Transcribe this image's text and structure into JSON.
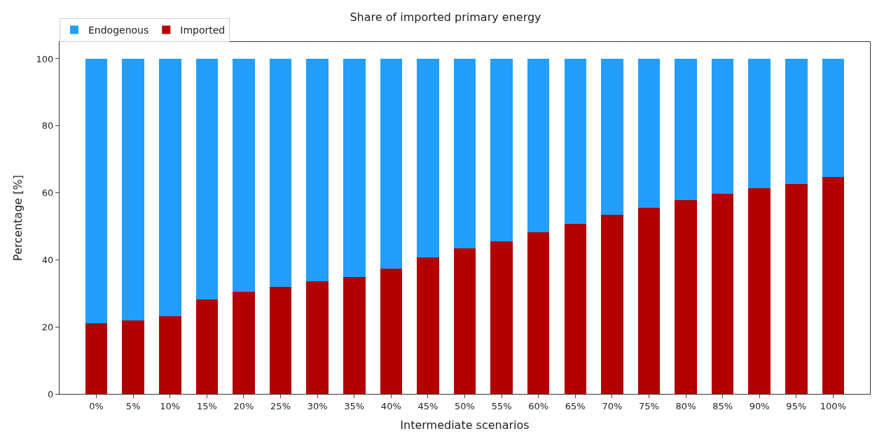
{
  "chart_data": {
    "type": "bar",
    "title": "Share of imported primary energy",
    "xlabel": "Intermediate scenarios",
    "ylabel": "Percentage [%]",
    "categories": [
      "0%",
      "5%",
      "10%",
      "15%",
      "20%",
      "25%",
      "30%",
      "35%",
      "40%",
      "45%",
      "50%",
      "55%",
      "60%",
      "65%",
      "70%",
      "75%",
      "80%",
      "85%",
      "90%",
      "95%",
      "100%"
    ],
    "stacked": true,
    "series": [
      {
        "name": "Imported",
        "color": "#b30000",
        "values": [
          21.1,
          21.9,
          23.1,
          28.1,
          30.5,
          31.9,
          33.7,
          34.9,
          37.3,
          40.8,
          43.4,
          45.6,
          48.2,
          50.8,
          53.4,
          55.6,
          57.8,
          59.6,
          61.4,
          62.7,
          64.7
        ]
      },
      {
        "name": "Endogenous",
        "color": "#229eff",
        "values": [
          78.9,
          78.1,
          76.9,
          71.9,
          69.5,
          68.1,
          66.3,
          65.1,
          62.7,
          59.2,
          56.6,
          54.4,
          51.8,
          49.2,
          46.6,
          44.4,
          42.2,
          40.4,
          38.6,
          37.3,
          35.3
        ]
      }
    ],
    "ylim": [
      0,
      105
    ],
    "yticks": [
      0,
      20,
      40,
      60,
      80,
      100
    ],
    "legend": "top left"
  }
}
